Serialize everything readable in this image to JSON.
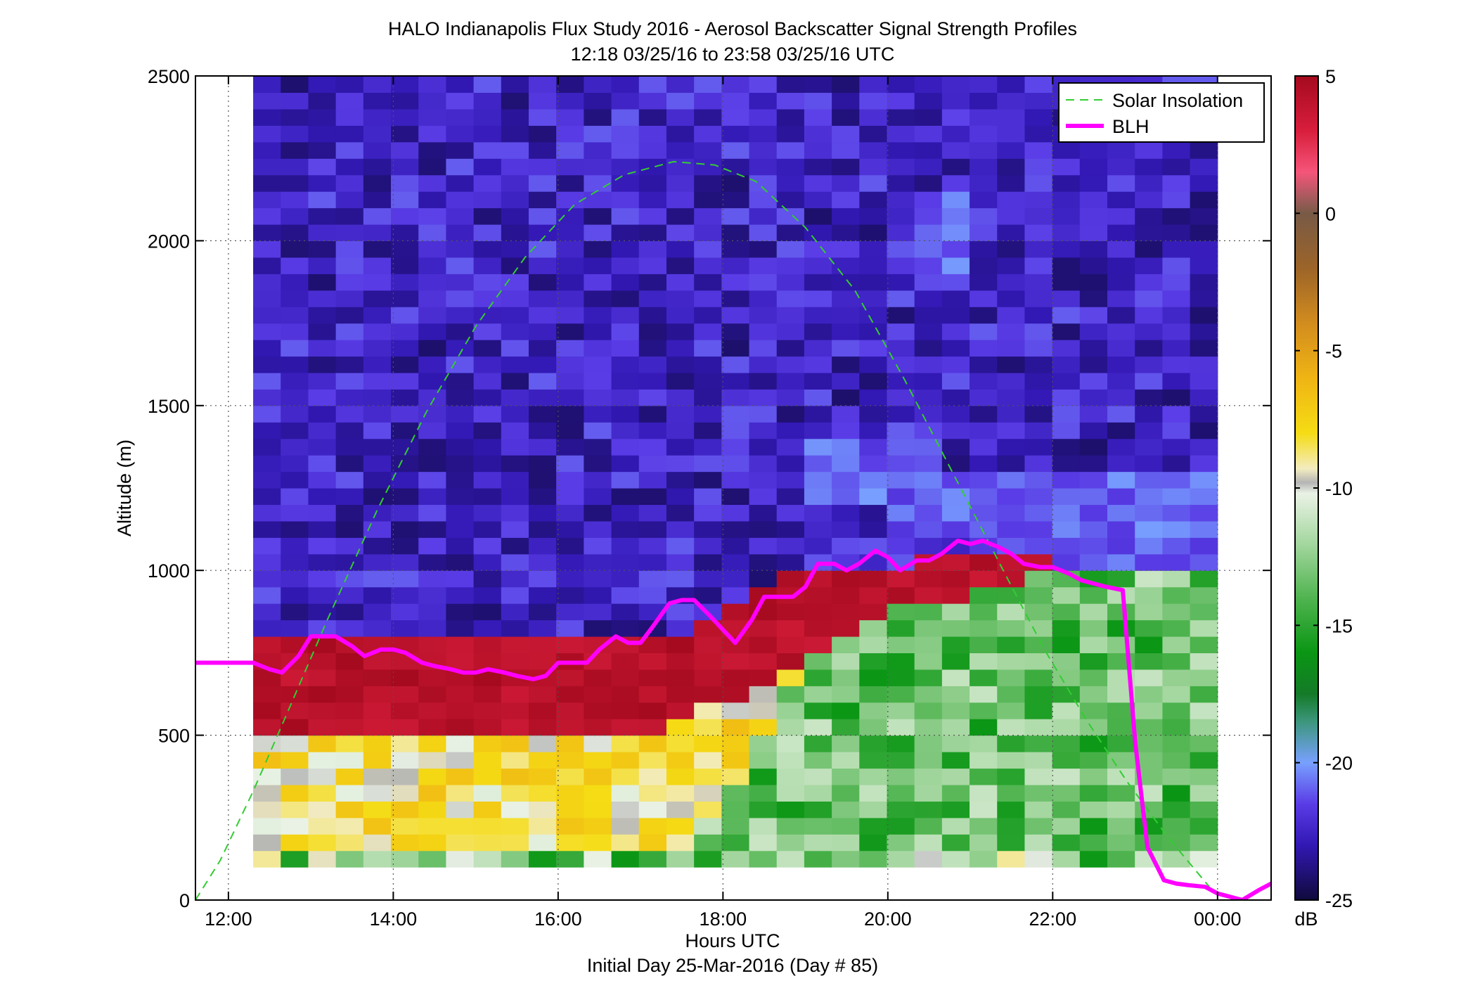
{
  "chart_data": {
    "type": "heatmap",
    "title": "HALO Indianapolis Flux Study 2016 - Aerosol Backscatter Signal Strength Profiles",
    "subtitle": "12:18 03/25/16 to 23:58 03/25/16  UTC",
    "xlabel": "Hours UTC",
    "xlabel2": "Initial Day 25-Mar-2016 (Day # 85)",
    "ylabel": "Altitude (m)",
    "x_unit": "hours UTC",
    "xlim": [
      11.6,
      24.65
    ],
    "ylim": [
      0,
      2500
    ],
    "x_ticks": [
      {
        "value": 12,
        "label": "12:00"
      },
      {
        "value": 14,
        "label": "14:00"
      },
      {
        "value": 16,
        "label": "16:00"
      },
      {
        "value": 18,
        "label": "18:00"
      },
      {
        "value": 20,
        "label": "20:00"
      },
      {
        "value": 22,
        "label": "22:00"
      },
      {
        "value": 24,
        "label": "00:00"
      }
    ],
    "y_ticks": [
      {
        "value": 0,
        "label": "0"
      },
      {
        "value": 500,
        "label": "500"
      },
      {
        "value": 1000,
        "label": "1000"
      },
      {
        "value": 1500,
        "label": "1500"
      },
      {
        "value": 2000,
        "label": "2000"
      },
      {
        "value": 2500,
        "label": "2500"
      }
    ],
    "grid": true,
    "legend_position": "top-right",
    "heatmap": {
      "x_start": 12.3,
      "x_end": 24.0,
      "columns": 35,
      "altitude_bottom": 100,
      "altitude_top": 2500,
      "row_height": 50,
      "layers": [
        {
          "time": [
            12.3,
            12.65,
            17.3,
            18.9,
            20.0,
            21.3,
            22.2,
            23.2,
            24.0
          ],
          "top": [
            780,
            800,
            800,
            1000,
            1000,
            1080,
            1000,
            1000,
            1000
          ],
          "green_top": [
            0,
            0,
            0,
            700,
            880,
            940,
            1000,
            1000,
            1000
          ],
          "red_bottom": [
            520,
            520,
            520,
            700,
            880,
            940,
            1000,
            1000,
            1000
          ],
          "band": [
            0,
            0,
            1,
            1,
            1,
            1,
            1,
            1,
            1
          ]
        }
      ],
      "light_blue_patches": [
        {
          "x": [
            19.0,
            20.8
          ],
          "y": [
            1200,
            1400
          ]
        },
        {
          "x": [
            20.0,
            21.5
          ],
          "y": [
            1100,
            1300
          ]
        },
        {
          "x": [
            21.2,
            24.0
          ],
          "y": [
            1000,
            1300
          ]
        },
        {
          "x": [
            20.3,
            21.0
          ],
          "y": [
            1900,
            2150
          ]
        }
      ],
      "surface_row": {
        "bottom": 100,
        "top": 150
      }
    },
    "colorbar": {
      "min": -25,
      "max": 5,
      "unit": "dB",
      "ticks": [
        {
          "value": 5,
          "label": "5"
        },
        {
          "value": 0,
          "label": "0"
        },
        {
          "value": -5,
          "label": "-5"
        },
        {
          "value": -10,
          "label": "-10"
        },
        {
          "value": -15,
          "label": "-15"
        },
        {
          "value": -20,
          "label": "-20"
        },
        {
          "value": -25,
          "label": "-25"
        }
      ],
      "stops": [
        {
          "value": 5,
          "color": "#a50a1e"
        },
        {
          "value": 3,
          "color": "#d81e3c"
        },
        {
          "value": 1.5,
          "color": "#f5557a"
        },
        {
          "value": 0.5,
          "color": "#a05a5a"
        },
        {
          "value": 0,
          "color": "#785a46"
        },
        {
          "value": -2,
          "color": "#9c6428"
        },
        {
          "value": -4,
          "color": "#d28c1e"
        },
        {
          "value": -6,
          "color": "#f0b414"
        },
        {
          "value": -8,
          "color": "#f5dc14"
        },
        {
          "value": -9.3,
          "color": "#f3ecc0"
        },
        {
          "value": -9.8,
          "color": "#b4b4b4"
        },
        {
          "value": -10.2,
          "color": "#eaf2e6"
        },
        {
          "value": -12,
          "color": "#a5d7a0"
        },
        {
          "value": -14,
          "color": "#50b450"
        },
        {
          "value": -16,
          "color": "#0a9614"
        },
        {
          "value": -17.5,
          "color": "#147a28"
        },
        {
          "value": -18.5,
          "color": "#3c967c"
        },
        {
          "value": -20,
          "color": "#78a0ff"
        },
        {
          "value": -21.5,
          "color": "#5a3ce6"
        },
        {
          "value": -23,
          "color": "#3218b4"
        },
        {
          "value": -25,
          "color": "#0f0a3c"
        }
      ]
    },
    "series": [
      {
        "name": "Solar Insolation",
        "style": "dashed",
        "color": "#33cc33",
        "x": [
          11.6,
          11.9,
          12.3,
          12.7,
          13.2,
          13.8,
          14.4,
          15.0,
          15.6,
          16.2,
          16.8,
          17.4,
          17.9,
          18.4,
          19.0,
          19.6,
          20.2,
          20.8,
          21.4,
          21.9,
          22.4,
          22.9,
          23.4,
          23.9
        ],
        "y": [
          0,
          120,
          330,
          560,
          850,
          1180,
          1480,
          1740,
          1950,
          2110,
          2200,
          2240,
          2230,
          2180,
          2040,
          1850,
          1580,
          1290,
          1000,
          760,
          550,
          360,
          190,
          40
        ]
      },
      {
        "name": "BLH",
        "style": "solid",
        "color": "#ff00ff",
        "x": [
          11.6,
          12.2,
          12.3,
          12.5,
          12.65,
          12.85,
          13.0,
          13.15,
          13.3,
          13.5,
          13.65,
          13.85,
          14.0,
          14.15,
          14.35,
          14.5,
          14.7,
          14.85,
          15.0,
          15.15,
          15.35,
          15.5,
          15.7,
          15.85,
          16.0,
          16.2,
          16.35,
          16.5,
          16.7,
          16.85,
          17.0,
          17.15,
          17.35,
          17.5,
          17.65,
          17.85,
          18.0,
          18.15,
          18.35,
          18.5,
          18.65,
          18.85,
          19.0,
          19.15,
          19.35,
          19.5,
          19.65,
          19.85,
          20.0,
          20.15,
          20.35,
          20.5,
          20.65,
          20.85,
          21.0,
          21.15,
          21.35,
          21.5,
          21.65,
          21.85,
          22.0,
          22.2,
          22.35,
          22.5,
          22.65,
          22.85,
          23.0,
          23.15,
          23.35,
          23.5,
          23.65,
          23.85,
          24.0,
          24.3,
          24.5,
          24.65
        ],
        "y": [
          720,
          720,
          720,
          700,
          690,
          740,
          800,
          800,
          800,
          770,
          740,
          760,
          760,
          750,
          720,
          710,
          700,
          690,
          690,
          700,
          690,
          680,
          670,
          680,
          720,
          720,
          720,
          760,
          800,
          780,
          780,
          830,
          900,
          910,
          910,
          860,
          820,
          780,
          850,
          920,
          920,
          920,
          950,
          1020,
          1020,
          1000,
          1020,
          1060,
          1040,
          1000,
          1030,
          1030,
          1050,
          1090,
          1080,
          1090,
          1070,
          1050,
          1020,
          1010,
          1010,
          990,
          970,
          960,
          950,
          940,
          480,
          160,
          60,
          50,
          45,
          40,
          20,
          0,
          30,
          50
        ]
      }
    ]
  }
}
